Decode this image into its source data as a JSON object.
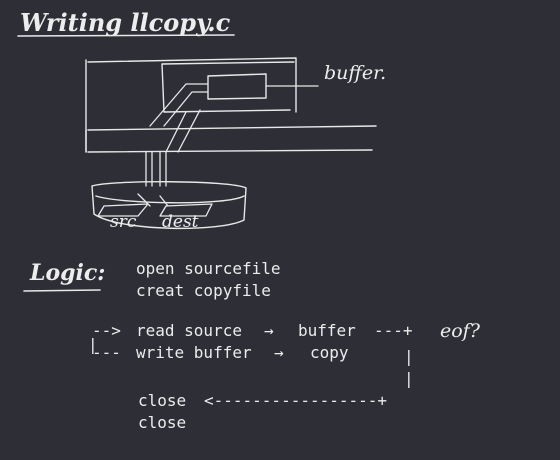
{
  "title": "Writing llcopy.c",
  "diagram": {
    "buffer_label": "buffer.",
    "src_label": "src",
    "dest_label": "dest"
  },
  "logic": {
    "heading": "Logic:",
    "steps": [
      "open sourcefile",
      "creat copyfile"
    ],
    "loop": {
      "read_line": "read source",
      "read_target": "buffer",
      "write_line": "write buffer",
      "write_target": "copy",
      "eof_label": "eof?"
    },
    "close_lines": [
      "close",
      "close"
    ]
  }
}
